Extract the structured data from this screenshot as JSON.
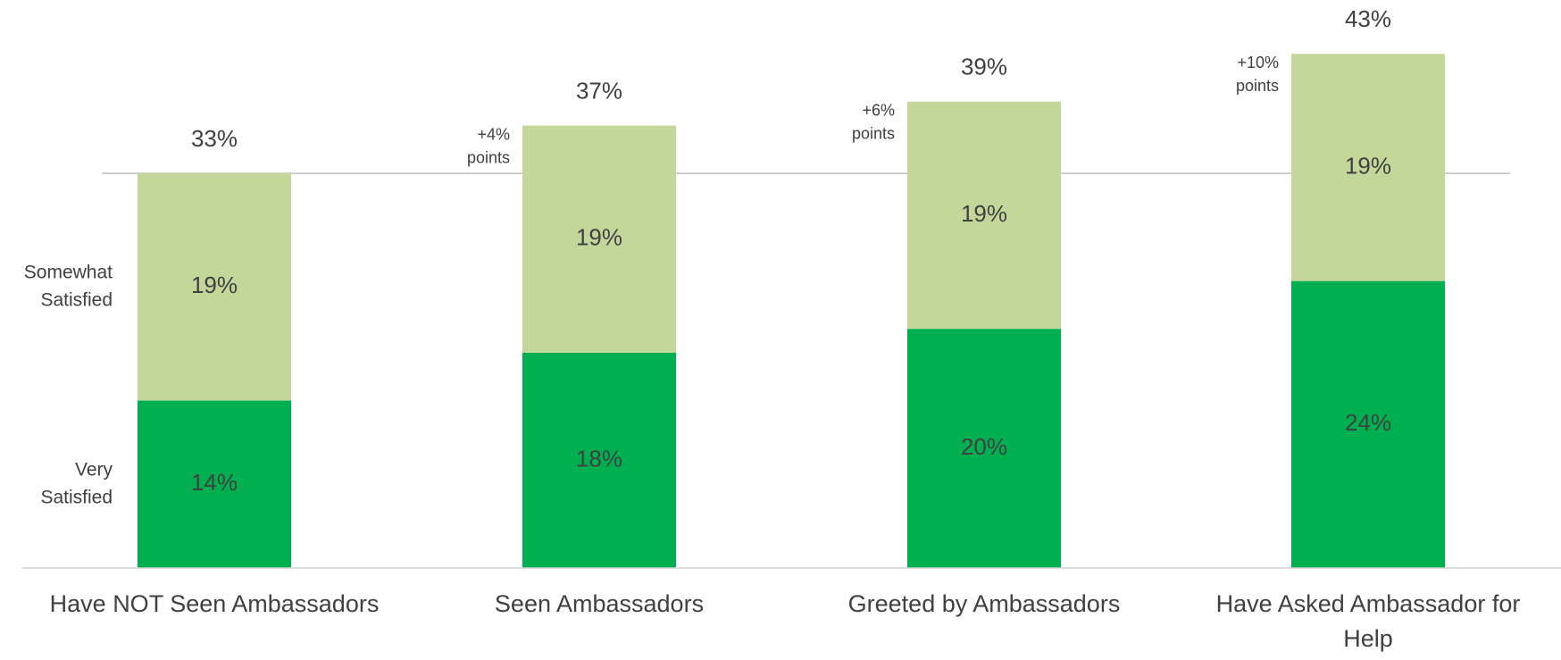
{
  "chart_data": {
    "type": "stacked_bar",
    "categories": [
      "Have NOT Seen Ambassadors",
      "Seen Ambassadors",
      "Greeted by Ambassadors",
      "Have Asked Ambassador for Help"
    ],
    "series": [
      {
        "name": "Very Satisfied",
        "color": "#00b050",
        "values": [
          14,
          18,
          20,
          24
        ],
        "value_labels": [
          "14%",
          "18%",
          "20%",
          "24%"
        ]
      },
      {
        "name": "Somewhat Satisfied",
        "color": "#c4d79b",
        "values": [
          19,
          19,
          19,
          19
        ],
        "value_labels": [
          "19%",
          "19%",
          "19%",
          "19%"
        ]
      }
    ],
    "totals": [
      33,
      37,
      39,
      43
    ],
    "total_labels": [
      "33%",
      "37%",
      "39%",
      "43%"
    ],
    "reference_line": 33,
    "annotations": [
      null,
      [
        "+4%",
        "points"
      ],
      [
        "+6%",
        "points"
      ],
      [
        "+10%",
        "points"
      ]
    ],
    "ylim": [
      0,
      47.5
    ]
  }
}
